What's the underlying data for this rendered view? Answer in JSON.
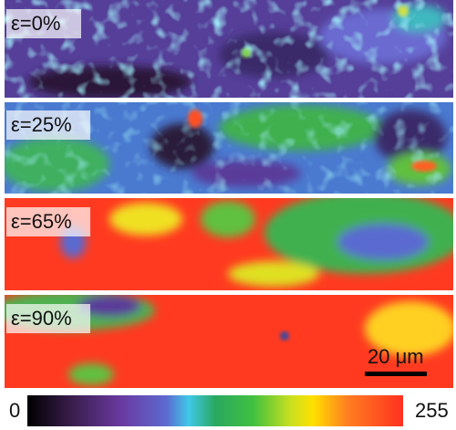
{
  "panels": [
    {
      "label": "ε=0%"
    },
    {
      "label": "ε=25%"
    },
    {
      "label": "ε=65%"
    },
    {
      "label": "ε=90%"
    }
  ],
  "scale_bar": {
    "label": "20 μm"
  },
  "colorbar": {
    "min_label": "0",
    "max_label": "255"
  }
}
